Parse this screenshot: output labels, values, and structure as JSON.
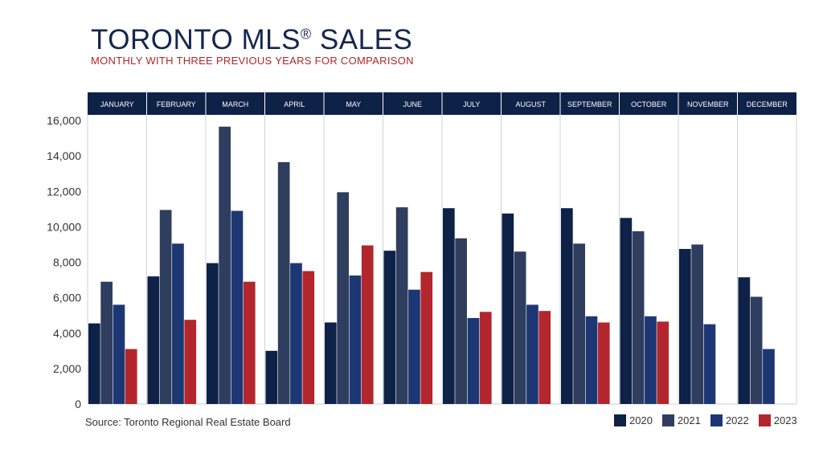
{
  "title": "TORONTO MLS",
  "title_reg": "®",
  "title_suffix": " SALES",
  "subtitle": "MONTHLY WITH THREE PREVIOUS YEARS FOR COMPARISON",
  "source": "Source: Toronto Regional Real Estate Board",
  "colors": {
    "2020": "#0e2147",
    "2021": "#2f3e5e",
    "2022": "#1c3774",
    "2023": "#b3262d",
    "header": "#0e2147"
  },
  "chart_data": {
    "type": "bar",
    "categories": [
      "JANUARY",
      "FEBRUARY",
      "MARCH",
      "APRIL",
      "MAY",
      "JUNE",
      "JULY",
      "AUGUST",
      "SEPTEMBER",
      "OCTOBER",
      "NOVEMBER",
      "DECEMBER"
    ],
    "series": [
      {
        "name": "2020",
        "values": [
          4550,
          7200,
          7950,
          3000,
          4600,
          8650,
          11050,
          10750,
          11050,
          10500,
          8750,
          7150
        ]
      },
      {
        "name": "2021",
        "values": [
          6900,
          10950,
          15650,
          13650,
          11950,
          11100,
          9350,
          8600,
          9050,
          9750,
          9000,
          6050
        ]
      },
      {
        "name": "2022",
        "values": [
          5600,
          9050,
          10900,
          7950,
          7250,
          6450,
          4850,
          5600,
          4950,
          4950,
          4500,
          3100
        ]
      },
      {
        "name": "2023",
        "values": [
          3100,
          4750,
          6900,
          7500,
          8950,
          7450,
          5200,
          5250,
          4600,
          4650,
          null,
          null
        ]
      }
    ],
    "yticks": [
      "0",
      "2,000",
      "4,000",
      "6,000",
      "8,000",
      "10,000",
      "12,000",
      "14,000",
      "16,000"
    ],
    "ylim": [
      0,
      16000
    ],
    "legend": [
      "2020",
      "2021",
      "2022",
      "2023"
    ],
    "legend_position": "bottom-right",
    "grid": false
  }
}
